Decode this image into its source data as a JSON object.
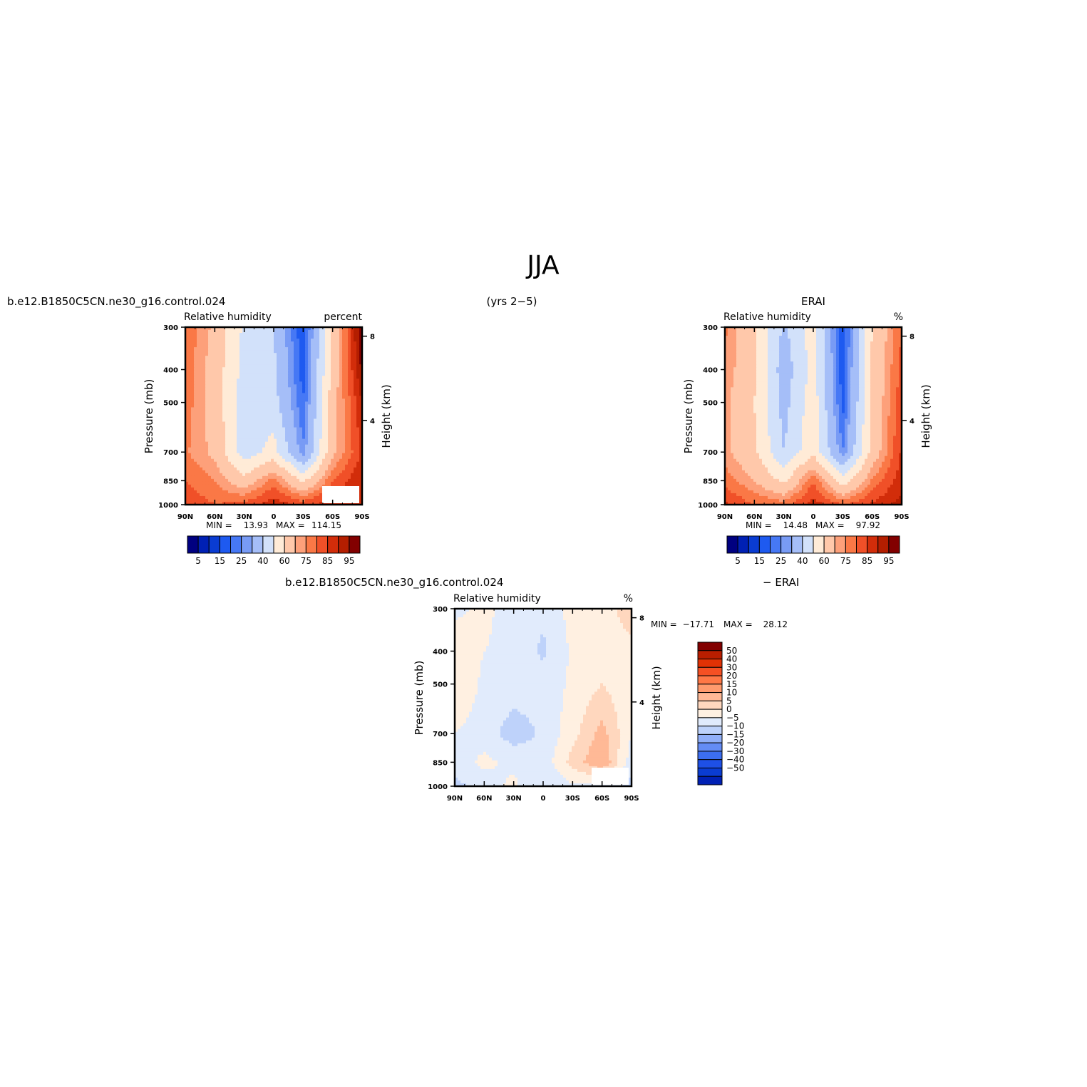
{
  "page": {
    "title": "JJA",
    "subtitle_center": "(yrs 2−5)"
  },
  "colors": {
    "rh_levels": [
      "#000080",
      "#0020b4",
      "#0a3cd2",
      "#1e5af0",
      "#4678f5",
      "#789bf5",
      "#a5bef8",
      "#d2e1fa",
      "#ffebd7",
      "#ffc8aa",
      "#fda07a",
      "#fa7846",
      "#f05028",
      "#d22d0a",
      "#b41e00",
      "#820000"
    ],
    "diff_levels": [
      "#000080",
      "#0020b4",
      "#0a3cd2",
      "#1e50e6",
      "#3c6ef0",
      "#648cf5",
      "#91aff8",
      "#bed2fa",
      "#e1ebfc",
      "#fff0e1",
      "#ffd7be",
      "#ffb996",
      "#ff9b6e",
      "#ff7846",
      "#f55023",
      "#e13205",
      "#b91e00",
      "#820000"
    ]
  },
  "chart_data": [
    {
      "type": "heatmap",
      "panel": "model",
      "left_title": "b.e12.B1850C5CN.ne30_g16.control.024",
      "inner_left": "Relative humidity",
      "inner_right": "percent",
      "xlabel": "",
      "ylabel": "Pressure (mb)",
      "ylabel_right": "Height (km)",
      "x_ticks": [
        "90N",
        "60N",
        "30N",
        "0",
        "30S",
        "60S",
        "90S"
      ],
      "y_ticks": [
        "300",
        "400",
        "500",
        "700",
        "850",
        "1000"
      ],
      "y_right_ticks": [
        "8",
        "4"
      ],
      "ylim": [
        1000,
        300
      ],
      "min_label": "MIN =",
      "min_value": "13.93",
      "max_label": "MAX =",
      "max_value": "114.15",
      "colorbar_labels": [
        "5",
        "15",
        "25",
        "40",
        "60",
        "75",
        "85",
        "95"
      ],
      "lat": [
        90,
        60,
        30,
        0,
        -30,
        -60,
        -90
      ],
      "lev": [
        300,
        400,
        500,
        700,
        850,
        1000
      ],
      "values": [
        [
          80,
          68,
          48,
          40,
          15,
          62,
          100
        ],
        [
          78,
          66,
          46,
          42,
          17,
          64,
          96
        ],
        [
          78,
          66,
          45,
          44,
          20,
          66,
          90
        ],
        [
          76,
          68,
          44,
          54,
          26,
          68,
          86
        ],
        [
          80,
          75,
          64,
          78,
          58,
          80,
          90
        ],
        [
          84,
          80,
          82,
          88,
          84,
          88,
          88
        ]
      ]
    },
    {
      "type": "heatmap",
      "panel": "obs",
      "left_title": "",
      "right_title": "ERAI",
      "inner_left": "Relative humidity",
      "inner_right": "%",
      "xlabel": "",
      "ylabel": "Pressure (mb)",
      "ylabel_right": "Height (km)",
      "x_ticks": [
        "90N",
        "60N",
        "30N",
        "0",
        "30S",
        "60S",
        "90S"
      ],
      "y_ticks": [
        "300",
        "400",
        "500",
        "700",
        "850",
        "1000"
      ],
      "y_right_ticks": [
        "8",
        "4"
      ],
      "ylim": [
        1000,
        300
      ],
      "min_label": "MIN =",
      "min_value": "14.48",
      "max_label": "MAX =",
      "max_value": "97.92",
      "colorbar_labels": [
        "5",
        "15",
        "25",
        "40",
        "60",
        "75",
        "85",
        "95"
      ],
      "lat": [
        90,
        60,
        30,
        0,
        -30,
        -60,
        -90
      ],
      "lev": [
        300,
        400,
        500,
        700,
        850,
        1000
      ],
      "values": [
        [
          76,
          62,
          38,
          55,
          15,
          60,
          80
        ],
        [
          74,
          62,
          34,
          54,
          16,
          62,
          82
        ],
        [
          72,
          60,
          36,
          56,
          18,
          62,
          84
        ],
        [
          72,
          62,
          40,
          58,
          25,
          64,
          86
        ],
        [
          78,
          70,
          58,
          80,
          55,
          76,
          88
        ],
        [
          86,
          80,
          78,
          88,
          80,
          86,
          92
        ]
      ]
    },
    {
      "type": "heatmap",
      "panel": "difference",
      "left_title": "b.e12.B1850C5CN.ne30_g16.control.024",
      "right_title": "− ERAI",
      "inner_left": "Relative humidity",
      "inner_right": "%",
      "xlabel": "",
      "ylabel": "Pressure (mb)",
      "ylabel_right": "Height (km)",
      "x_ticks": [
        "90N",
        "60N",
        "30N",
        "0",
        "30S",
        "60S",
        "90S"
      ],
      "y_ticks": [
        "300",
        "400",
        "500",
        "700",
        "850",
        "1000"
      ],
      "y_right_ticks": [
        "8",
        "4"
      ],
      "ylim": [
        1000,
        300
      ],
      "min_label": "MIN =",
      "min_value": "−17.71",
      "max_label": "MAX =",
      "max_value": "28.12",
      "colorbar_labels": [
        "50",
        "40",
        "30",
        "20",
        "15",
        "10",
        "5",
        "0",
        "−5",
        "−10",
        "−15",
        "−20",
        "−30",
        "−40",
        "−50"
      ],
      "lat": [
        90,
        60,
        30,
        0,
        -30,
        -60,
        -90
      ],
      "lev": [
        300,
        400,
        500,
        700,
        850,
        1000
      ],
      "values": [
        [
          4,
          6,
          3,
          1,
          7,
          6,
          14
        ],
        [
          8,
          5,
          4,
          -1,
          6,
          7,
          8
        ],
        [
          9,
          4,
          3,
          2,
          6,
          10,
          6
        ],
        [
          5,
          3,
          -3,
          1,
          8,
          17,
          5
        ],
        [
          3,
          6,
          4,
          2,
          12,
          20,
          2
        ],
        [
          -2,
          3,
          6,
          0,
          4,
          3,
          -2
        ]
      ]
    }
  ]
}
